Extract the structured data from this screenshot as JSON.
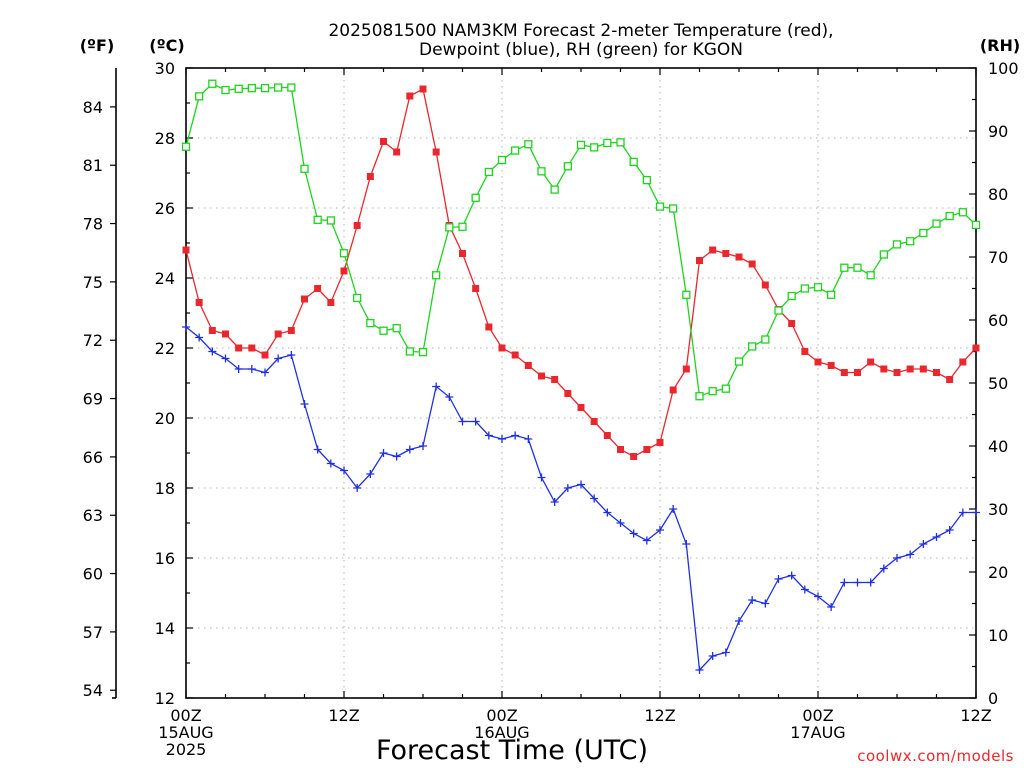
{
  "header": {
    "title_line1": "2025081500 NAM3KM Forecast 2-meter Temperature (red),",
    "title_line2": "Dewpoint (blue), RH (green) for KGON"
  },
  "axes": {
    "left_outer_unit": "(ºF)",
    "left_inner_unit": "(ºC)",
    "right_unit": "(RH)",
    "xlabel": "Forecast Time (UTC)"
  },
  "credit": "coolwx.com/models",
  "chart_data": {
    "type": "line",
    "title": "2025081500 NAM3KM Forecast 2-meter Temperature (red), Dewpoint (blue), RH (green) for KGON",
    "xlabel": "Forecast Time (UTC)",
    "x_hours": [
      0,
      1,
      2,
      3,
      4,
      5,
      6,
      7,
      8,
      9,
      10,
      11,
      12,
      13,
      14,
      15,
      16,
      17,
      18,
      19,
      20,
      21,
      22,
      23,
      24,
      25,
      26,
      27,
      28,
      29,
      30,
      31,
      32,
      33,
      34,
      35,
      36,
      37,
      38,
      39,
      40,
      41,
      42,
      43,
      44,
      45,
      46,
      47,
      48,
      49,
      50,
      51,
      52,
      53,
      54,
      55,
      56,
      57,
      58,
      59,
      60
    ],
    "x_ticks": [
      {
        "hour": 0,
        "lines": [
          "00Z",
          "15AUG",
          "2025"
        ]
      },
      {
        "hour": 12,
        "lines": [
          "12Z"
        ]
      },
      {
        "hour": 24,
        "lines": [
          "00Z",
          "16AUG"
        ]
      },
      {
        "hour": 36,
        "lines": [
          "12Z"
        ]
      },
      {
        "hour": 48,
        "lines": [
          "00Z",
          "17AUG"
        ]
      },
      {
        "hour": 60,
        "lines": [
          "12Z"
        ]
      }
    ],
    "y_celsius": {
      "label": "(ºC)",
      "range": [
        12,
        30
      ],
      "ticks": [
        12,
        14,
        16,
        18,
        20,
        22,
        24,
        26,
        28,
        30
      ]
    },
    "y_fahrenheit": {
      "label": "(ºF)",
      "ticks": [
        54,
        57,
        60,
        63,
        66,
        69,
        72,
        75,
        78,
        81,
        84
      ]
    },
    "y_rh": {
      "label": "(RH)",
      "range": [
        0,
        100
      ],
      "ticks": [
        0,
        10,
        20,
        30,
        40,
        50,
        60,
        70,
        80,
        90,
        100
      ]
    },
    "grid": true,
    "series": [
      {
        "name": "Temperature",
        "color": "#e8282e",
        "marker": "filled-square",
        "axis": "celsius",
        "values": [
          24.8,
          23.3,
          22.5,
          22.4,
          22.0,
          22.0,
          21.8,
          22.4,
          22.5,
          23.4,
          23.7,
          23.3,
          24.2,
          25.5,
          26.9,
          27.9,
          27.6,
          29.2,
          29.4,
          27.6,
          25.5,
          24.7,
          23.7,
          22.6,
          22.0,
          21.8,
          21.5,
          21.2,
          21.1,
          20.7,
          20.3,
          19.9,
          19.5,
          19.1,
          18.9,
          19.1,
          19.3,
          20.8,
          21.4,
          24.5,
          24.8,
          24.7,
          24.6,
          24.4,
          23.8,
          23.1,
          22.7,
          21.9,
          21.6,
          21.5,
          21.3,
          21.3,
          21.6,
          21.4,
          21.3,
          21.4,
          21.4,
          21.3,
          21.1,
          21.6,
          22.0
        ]
      },
      {
        "name": "Dewpoint",
        "color": "#2030e0",
        "marker": "plus",
        "axis": "celsius",
        "values": [
          22.6,
          22.3,
          21.9,
          21.7,
          21.4,
          21.4,
          21.3,
          21.7,
          21.8,
          20.4,
          19.1,
          18.7,
          18.5,
          18.0,
          18.4,
          19.0,
          18.9,
          19.1,
          19.2,
          20.9,
          20.6,
          19.9,
          19.9,
          19.5,
          19.4,
          19.5,
          19.4,
          18.3,
          17.6,
          18.0,
          18.1,
          17.7,
          17.3,
          17.0,
          16.7,
          16.5,
          16.8,
          17.4,
          16.4,
          12.8,
          13.2,
          13.3,
          14.2,
          14.8,
          14.7,
          15.4,
          15.5,
          15.1,
          14.9,
          14.6,
          15.3,
          15.3,
          15.3,
          15.7,
          16.0,
          16.1,
          16.4,
          16.6,
          16.8,
          17.3,
          17.3
        ]
      },
      {
        "name": "RH",
        "color": "#1ed41e",
        "marker": "open-square",
        "axis": "rh",
        "values": [
          87.5,
          95.5,
          97.5,
          96.5,
          96.7,
          96.8,
          96.8,
          96.9,
          96.9,
          84.0,
          75.9,
          75.8,
          70.6,
          63.5,
          59.5,
          58.3,
          58.7,
          55.0,
          54.9,
          67.1,
          74.7,
          74.8,
          79.4,
          83.5,
          85.4,
          86.9,
          87.9,
          83.6,
          80.7,
          84.4,
          87.8,
          87.4,
          88.1,
          88.2,
          85.1,
          82.2,
          78.0,
          77.7,
          64.0,
          47.9,
          48.7,
          49.1,
          53.4,
          55.8,
          56.9,
          61.5,
          63.8,
          65.0,
          65.2,
          64.0,
          68.3,
          68.3,
          67.1,
          70.4,
          72.0,
          72.5,
          73.8,
          75.3,
          76.5,
          77.1,
          75.1
        ]
      }
    ]
  }
}
